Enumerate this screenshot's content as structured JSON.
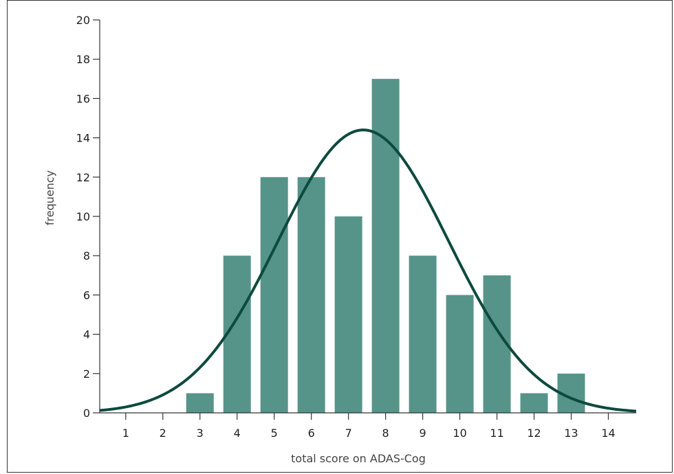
{
  "chart_data": {
    "type": "bar",
    "categories": [
      1,
      2,
      3,
      4,
      5,
      6,
      7,
      8,
      9,
      10,
      11,
      12,
      13,
      14
    ],
    "values": [
      0,
      0,
      1,
      8,
      12,
      12,
      10,
      17,
      8,
      6,
      7,
      1,
      2,
      0
    ],
    "title": "",
    "xlabel": "total score on ADAS-Cog",
    "ylabel": "frequency",
    "xlim": [
      0.3,
      14.75
    ],
    "ylim": [
      0,
      20
    ],
    "yticks": [
      0,
      2,
      4,
      6,
      8,
      10,
      12,
      14,
      16,
      18,
      20
    ],
    "xticks": [
      1,
      2,
      3,
      4,
      5,
      6,
      7,
      8,
      9,
      10,
      11,
      12,
      13,
      14
    ],
    "grid": false,
    "legend": "none",
    "overlay": {
      "type": "normal-curve",
      "mean": 7.4,
      "sd": 2.3,
      "peak": 14.4
    },
    "colors": {
      "bar": "#56948a",
      "curve": "#0d4a3e",
      "axis": "#333333"
    }
  }
}
